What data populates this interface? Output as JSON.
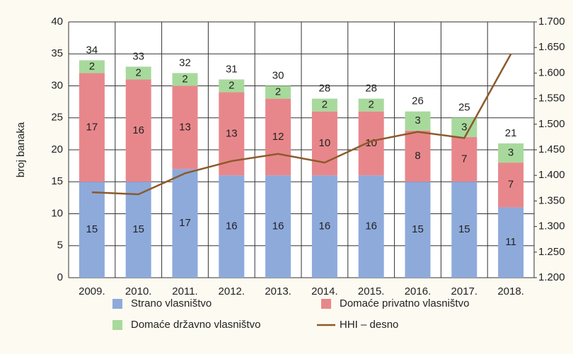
{
  "chart_data": {
    "type": "bar",
    "stacked": true,
    "y_label": "broj banaka",
    "categories": [
      "2009.",
      "2010.",
      "2011.",
      "2012.",
      "2013.",
      "2014.",
      "2015.",
      "2016.",
      "2017.",
      "2018."
    ],
    "series": [
      {
        "name": "Strano vlasništvo",
        "color": "#8eaadb",
        "values": [
          15,
          15,
          17,
          16,
          16,
          16,
          16,
          15,
          15,
          11
        ]
      },
      {
        "name": "Domaće privatno vlasništvo",
        "color": "#e8878b",
        "values": [
          17,
          16,
          13,
          13,
          12,
          10,
          10,
          8,
          7,
          7
        ]
      },
      {
        "name": "Domaće državno vlasništvo",
        "color": "#a8d99c",
        "values": [
          2,
          2,
          2,
          2,
          2,
          2,
          2,
          3,
          3,
          3
        ]
      },
      {
        "name": "HHI – desno",
        "color": "#8b5a2b",
        "type": "line",
        "axis": "y2",
        "values": [
          1367,
          1363,
          1404,
          1428,
          1442,
          1425,
          1467,
          1485,
          1473,
          1637
        ]
      }
    ],
    "totals": [
      34,
      33,
      32,
      31,
      30,
      28,
      28,
      26,
      25,
      21
    ],
    "ylim": [
      0,
      40
    ],
    "yticks": [
      0,
      5,
      10,
      15,
      20,
      25,
      30,
      35,
      40
    ],
    "y2lim": [
      1200,
      1700
    ],
    "y2ticks": [
      {
        "value": 1200,
        "label": "1.200"
      },
      {
        "value": 1250,
        "label": "1.250"
      },
      {
        "value": 1300,
        "label": "1.300"
      },
      {
        "value": 1350,
        "label": "1.350"
      },
      {
        "value": 1400,
        "label": "1.400"
      },
      {
        "value": 1450,
        "label": "1.450"
      },
      {
        "value": 1500,
        "label": "1.500"
      },
      {
        "value": 1550,
        "label": "1.550"
      },
      {
        "value": 1600,
        "label": "1.600"
      },
      {
        "value": 1650,
        "label": "1.650"
      },
      {
        "value": 1700,
        "label": "1.700"
      }
    ],
    "grid": true,
    "legend": "bottom"
  }
}
